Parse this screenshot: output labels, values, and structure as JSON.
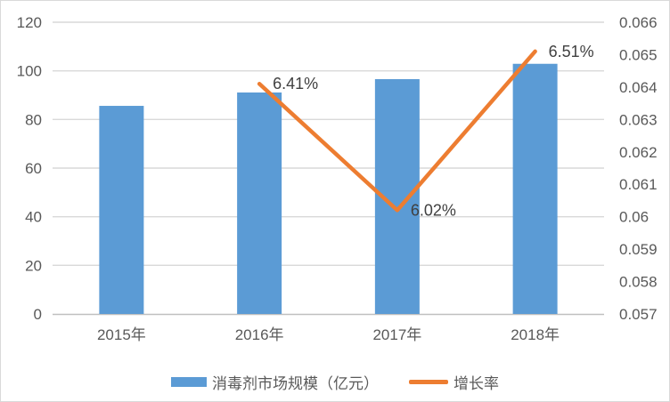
{
  "chart_data": {
    "type": "bar",
    "subtype": "bar-line-combo",
    "title": "",
    "categories": [
      "2015年",
      "2016年",
      "2017年",
      "2018年"
    ],
    "series": [
      {
        "name": "消毒剂市场规模（亿元）",
        "type": "bar",
        "axis": "left",
        "color": "#5B9BD5",
        "values": [
          85.6,
          91.1,
          96.6,
          102.9
        ]
      },
      {
        "name": "增长率",
        "type": "line",
        "axis": "right",
        "color": "#ED7D31",
        "values": [
          null,
          0.0641,
          0.0602,
          0.0651
        ],
        "point_labels": [
          "",
          "6.41%",
          "6.02%",
          "6.51%"
        ]
      }
    ],
    "left_axis": {
      "min": 0,
      "max": 120,
      "ticks": [
        "0",
        "20",
        "40",
        "60",
        "80",
        "100",
        "120"
      ]
    },
    "right_axis": {
      "min": 0.057,
      "max": 0.066,
      "ticks": [
        "0.057",
        "0.058",
        "0.059",
        "0.06",
        "0.061",
        "0.062",
        "0.063",
        "0.064",
        "0.065",
        "0.066"
      ]
    },
    "grid": true,
    "legend_position": "bottom",
    "colors": {
      "gridline": "#D9D9D9",
      "axis_line": "#BFBFBF",
      "tick_text": "#595959",
      "data_label_text": "#404040"
    }
  }
}
